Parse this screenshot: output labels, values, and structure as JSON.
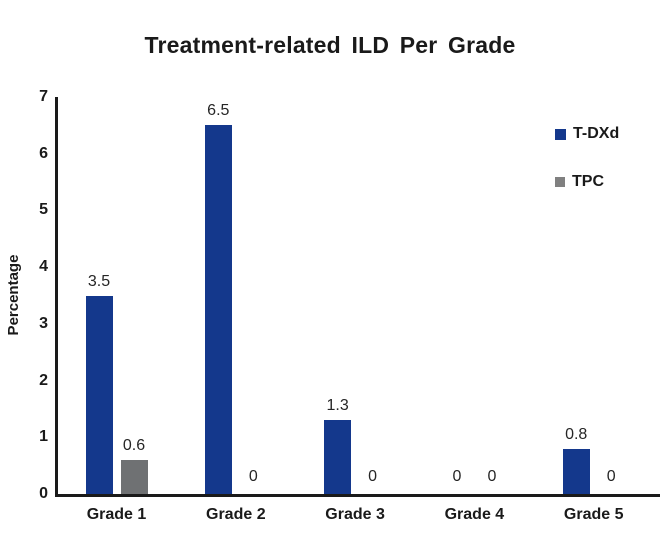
{
  "chart_data": {
    "type": "bar",
    "title": "Treatment-related ILD Per Grade",
    "ylabel": "Percentage",
    "xlabel": "",
    "categories": [
      "Grade 1",
      "Grade 2",
      "Grade 3",
      "Grade 4",
      "Grade 5"
    ],
    "series": [
      {
        "name": "T-DXd",
        "color": "#14388C",
        "legend_color": "#14388C",
        "values": [
          3.5,
          6.5,
          1.3,
          0,
          0.8
        ]
      },
      {
        "name": "TPC",
        "color": "#6F7173",
        "legend_color": "#808080",
        "values": [
          0.6,
          0,
          0,
          0,
          0
        ]
      }
    ],
    "ylim": [
      0,
      7
    ],
    "yticks": [
      0,
      1,
      2,
      3,
      4,
      5,
      6,
      7
    ],
    "grid": false,
    "legend_position": "top-right",
    "axis_color": "#1a1a1a",
    "text_color": "#1a1a1a",
    "background_color": "#ffffff"
  }
}
